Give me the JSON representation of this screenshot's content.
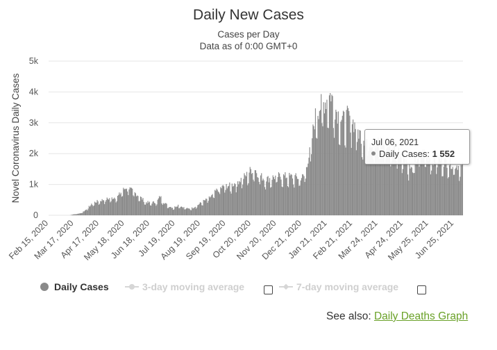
{
  "header": {
    "title": "Daily New Cases",
    "subtitle_line1": "Cases per Day",
    "subtitle_line2": "Data as of 0:00 GMT+0"
  },
  "chart_data": {
    "type": "bar",
    "title": "Daily New Cases",
    "subtitle": "Cases per Day / Data as of 0:00 GMT+0",
    "ylabel": "Novel Coronavirus Daily Cases",
    "xlabel": "",
    "ylim": [
      0,
      5000
    ],
    "y_ticks": [
      {
        "value": 0,
        "label": "0"
      },
      {
        "value": 1000,
        "label": "1k"
      },
      {
        "value": 2000,
        "label": "2k"
      },
      {
        "value": 3000,
        "label": "3k"
      },
      {
        "value": 4000,
        "label": "4k"
      },
      {
        "value": 5000,
        "label": "5k"
      }
    ],
    "x_ticks": [
      {
        "day": 0,
        "label": "Feb 15, 2020"
      },
      {
        "day": 31,
        "label": "Mar 17, 2020"
      },
      {
        "day": 62,
        "label": "Apr 17, 2020"
      },
      {
        "day": 93,
        "label": "May 18, 2020"
      },
      {
        "day": 124,
        "label": "Jun 18, 2020"
      },
      {
        "day": 155,
        "label": "Jul 19, 2020"
      },
      {
        "day": 186,
        "label": "Aug 19, 2020"
      },
      {
        "day": 217,
        "label": "Sep 19, 2020"
      },
      {
        "day": 248,
        "label": "Oct 20, 2020"
      },
      {
        "day": 279,
        "label": "Nov 20, 2020"
      },
      {
        "day": 310,
        "label": "Dec 21, 2020"
      },
      {
        "day": 341,
        "label": "Jan 21, 2021"
      },
      {
        "day": 372,
        "label": "Feb 21, 2021"
      },
      {
        "day": 403,
        "label": "Mar 24, 2021"
      },
      {
        "day": 434,
        "label": "Apr 24, 2021"
      },
      {
        "day": 465,
        "label": "May 25, 2021"
      },
      {
        "day": 496,
        "label": "Jun 25, 2021"
      }
    ],
    "series": [
      {
        "name": "Daily Cases",
        "color": "#8a8a8a",
        "start_date": "Feb 15, 2020",
        "end_day": 507,
        "anchors": [
          [
            0,
            0
          ],
          [
            25,
            0
          ],
          [
            30,
            30
          ],
          [
            38,
            60
          ],
          [
            44,
            150
          ],
          [
            50,
            300
          ],
          [
            56,
            420
          ],
          [
            62,
            470
          ],
          [
            70,
            520
          ],
          [
            78,
            560
          ],
          [
            84,
            600
          ],
          [
            90,
            800
          ],
          [
            96,
            930
          ],
          [
            100,
            820
          ],
          [
            106,
            700
          ],
          [
            112,
            580
          ],
          [
            118,
            430
          ],
          [
            124,
            400
          ],
          [
            132,
            430
          ],
          [
            136,
            620
          ],
          [
            140,
            430
          ],
          [
            146,
            300
          ],
          [
            152,
            240
          ],
          [
            158,
            330
          ],
          [
            164,
            260
          ],
          [
            170,
            210
          ],
          [
            176,
            240
          ],
          [
            182,
            330
          ],
          [
            188,
            440
          ],
          [
            194,
            520
          ],
          [
            200,
            640
          ],
          [
            206,
            830
          ],
          [
            212,
            900
          ],
          [
            216,
            960
          ],
          [
            222,
            950
          ],
          [
            230,
            1070
          ],
          [
            236,
            1180
          ],
          [
            242,
            1300
          ],
          [
            247,
            1460
          ],
          [
            252,
            1480
          ],
          [
            256,
            1330
          ],
          [
            262,
            1200
          ],
          [
            268,
            1170
          ],
          [
            274,
            1220
          ],
          [
            280,
            1260
          ],
          [
            286,
            1260
          ],
          [
            292,
            1250
          ],
          [
            300,
            1240
          ],
          [
            306,
            1200
          ],
          [
            312,
            1250
          ],
          [
            316,
            1700
          ],
          [
            320,
            2100
          ],
          [
            324,
            2900
          ],
          [
            327,
            3300
          ],
          [
            332,
            3500
          ],
          [
            338,
            3650
          ],
          [
            342,
            3800
          ],
          [
            345,
            3900
          ],
          [
            349,
            3500
          ],
          [
            355,
            3200
          ],
          [
            360,
            3050
          ],
          [
            366,
            3200
          ],
          [
            370,
            3100
          ],
          [
            374,
            2900
          ],
          [
            378,
            2700
          ],
          [
            384,
            2500
          ],
          [
            392,
            2400
          ],
          [
            400,
            2350
          ],
          [
            410,
            2300
          ],
          [
            418,
            2200
          ],
          [
            424,
            2150
          ],
          [
            430,
            2000
          ],
          [
            436,
            1850
          ],
          [
            440,
            1600
          ],
          [
            444,
            1450
          ],
          [
            448,
            1700
          ],
          [
            452,
            1900
          ],
          [
            458,
            2000
          ],
          [
            464,
            1900
          ],
          [
            470,
            1800
          ],
          [
            476,
            1800
          ],
          [
            482,
            1750
          ],
          [
            488,
            1700
          ],
          [
            494,
            1650
          ],
          [
            500,
            1600
          ],
          [
            504,
            1552
          ],
          [
            507,
            1550
          ]
        ]
      }
    ],
    "tooltip": {
      "date": "Jul 06, 2021",
      "series": "Daily Cases",
      "value": "1 552"
    }
  },
  "legend": {
    "daily_cases": "Daily Cases",
    "ma3": "3-day moving average",
    "ma7": "7-day moving average",
    "daily_cases_color": "#8a8a8a",
    "inactive_color": "#d6d6d6"
  },
  "tooltip": {
    "date": "Jul 06, 2021",
    "label": "Daily Cases: ",
    "value": "1 552"
  },
  "footer": {
    "see_also": "See also: ",
    "link_text": "Daily Deaths Graph"
  }
}
